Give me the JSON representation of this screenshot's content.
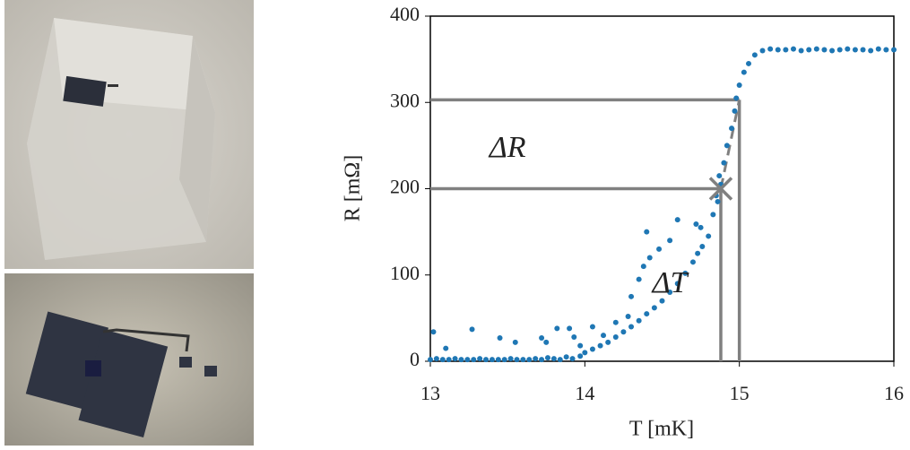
{
  "chart_data": {
    "type": "scatter",
    "xlabel": "T [mK]",
    "ylabel": "R [mΩ]",
    "xlim": [
      13,
      16
    ],
    "ylim": [
      0,
      400
    ],
    "xticks": [
      13,
      14,
      15,
      16
    ],
    "yticks": [
      0,
      100,
      200,
      300,
      400
    ],
    "series": [
      {
        "color": "#1f77b4",
        "x": [
          13.0,
          13.04,
          13.08,
          13.12,
          13.16,
          13.2,
          13.24,
          13.28,
          13.32,
          13.36,
          13.4,
          13.44,
          13.48,
          13.52,
          13.56,
          13.6,
          13.64,
          13.68,
          13.72,
          13.76,
          13.8,
          13.84,
          13.88,
          13.92,
          13.02,
          13.1,
          13.27,
          13.45,
          13.55,
          13.72,
          13.75,
          13.82,
          13.9,
          13.93,
          13.97,
          13.97,
          14.0,
          14.05,
          14.1,
          14.15,
          14.2,
          14.25,
          14.3,
          14.35,
          14.4,
          14.45,
          14.5,
          14.55,
          14.6,
          14.65,
          14.7,
          14.73,
          14.76,
          14.8,
          14.83,
          14.86,
          14.88,
          14.9,
          14.92,
          14.95,
          14.97,
          14.98,
          15.0,
          15.03,
          15.06,
          15.1,
          14.05,
          14.12,
          14.2,
          14.28,
          14.3,
          14.35,
          14.38,
          14.42,
          14.4,
          14.48,
          14.55,
          14.6,
          14.72,
          14.75,
          14.85,
          14.87,
          15.15,
          15.2,
          15.25,
          15.3,
          15.35,
          15.4,
          15.45,
          15.5,
          15.55,
          15.6,
          15.65,
          15.7,
          15.75,
          15.8,
          15.85,
          15.9,
          15.95,
          16.0
        ],
        "values": [
          2,
          3,
          2,
          2,
          3,
          2,
          2,
          2,
          3,
          2,
          2,
          2,
          2,
          3,
          2,
          2,
          2,
          3,
          2,
          4,
          3,
          2,
          5,
          3,
          34,
          15,
          37,
          27,
          22,
          27,
          22,
          38,
          38,
          28,
          18,
          6,
          10,
          14,
          18,
          22,
          28,
          34,
          40,
          47,
          55,
          62,
          70,
          80,
          90,
          102,
          115,
          125,
          133,
          145,
          170,
          185,
          205,
          230,
          250,
          270,
          290,
          305,
          320,
          335,
          345,
          355,
          40,
          30,
          45,
          52,
          75,
          95,
          110,
          120,
          150,
          130,
          140,
          164,
          159,
          155,
          192,
          215,
          360,
          362,
          361,
          361,
          362,
          360,
          361,
          362,
          361,
          360,
          361,
          362,
          361,
          361,
          360,
          362,
          361,
          361
        ]
      }
    ],
    "guides": [
      {
        "x": 15.0,
        "y": 303
      },
      {
        "x": 14.88,
        "y": 200
      }
    ],
    "annotations": [
      {
        "text": "ΔR",
        "x": 13.5,
        "y": 245
      },
      {
        "text": "ΔT",
        "x": 14.55,
        "y": 88
      }
    ]
  }
}
